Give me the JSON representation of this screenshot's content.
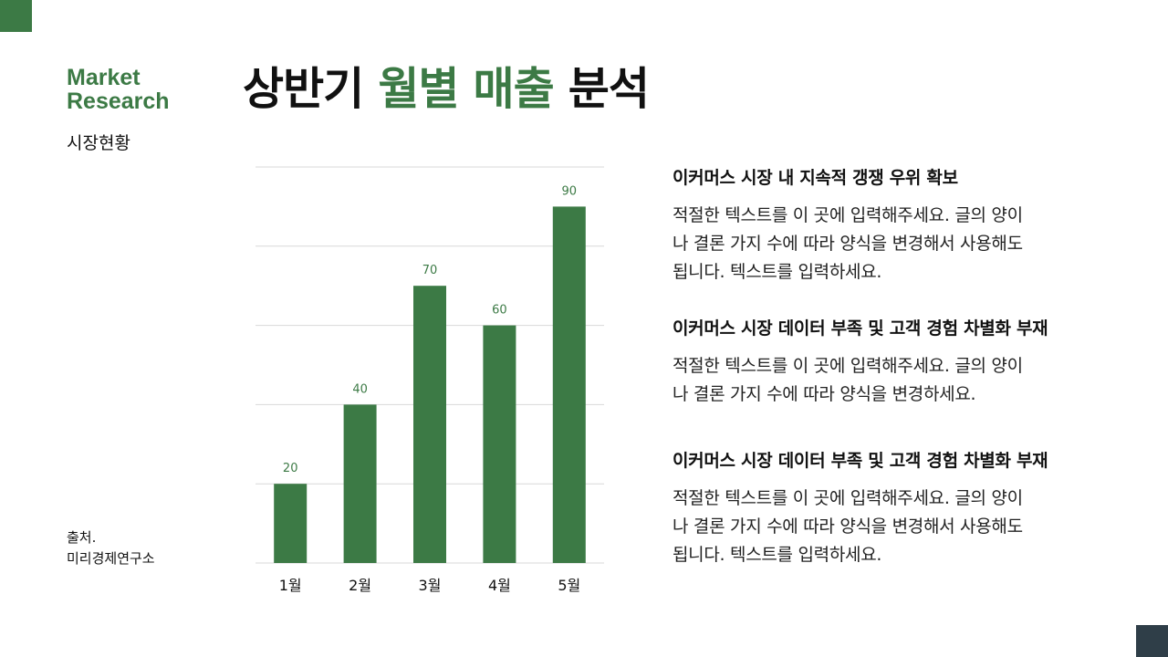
{
  "colors": {
    "accent": "#3c7a45",
    "corner_dark": "#2f3e48",
    "grid": "#d9d9d9",
    "text": "#111111"
  },
  "brand": {
    "line1": "Market",
    "line2": "Research"
  },
  "subtitle": "시장현황",
  "title": {
    "part1": "상반기 ",
    "highlight": "월별 매출",
    "part2": " 분석"
  },
  "source": {
    "label": "출처.",
    "name": "미리경제연구소"
  },
  "chart_data": {
    "type": "bar",
    "categories": [
      "1월",
      "2월",
      "3월",
      "4월",
      "5월"
    ],
    "values": [
      20,
      40,
      70,
      60,
      90
    ],
    "title": "",
    "xlabel": "",
    "ylabel": "",
    "ylim": [
      0,
      100
    ],
    "grid": true,
    "data_labels": true,
    "legend": "none"
  },
  "blocks": [
    {
      "heading": "이커머스 시장 내 지속적 갱쟁 우위 확보",
      "lines": [
        "적절한 텍스트를 이 곳에 입력해주세요. 글의 양이",
        "나 결론 가지 수에 따라 양식을 변경해서 사용해도",
        "됩니다. 텍스트를 입력하세요."
      ]
    },
    {
      "heading": "이커머스 시장 데이터 부족 및 고객 경험 차별화 부재",
      "lines": [
        "적절한 텍스트를 이 곳에 입력해주세요. 글의 양이",
        "나 결론 가지 수에 따라 양식을 변경하세요."
      ]
    },
    {
      "heading": "이커머스 시장 데이터 부족 및 고객 경험 차별화 부재",
      "lines": [
        "적절한 텍스트를 이 곳에 입력해주세요. 글의 양이",
        "나 결론 가지 수에 따라 양식을 변경해서 사용해도",
        "됩니다. 텍스트를 입력하세요."
      ]
    }
  ]
}
